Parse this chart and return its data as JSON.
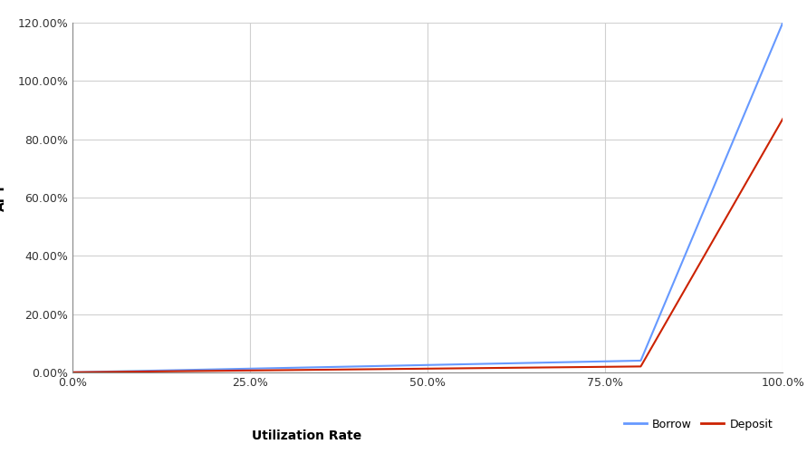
{
  "title": "",
  "xlabel": "Utilization Rate",
  "ylabel": "APY",
  "background_color": "#ffffff",
  "grid_color": "#d0d0d0",
  "borrow_color": "#6699ff",
  "deposit_color": "#cc2200",
  "legend_borrow": "Borrow",
  "legend_deposit": "Deposit",
  "xlim": [
    0.0,
    1.0
  ],
  "ylim": [
    0.0,
    1.2
  ],
  "x_ticks": [
    0.0,
    0.25,
    0.5,
    0.75,
    1.0
  ],
  "x_tick_labels": [
    "0.0%",
    "25.0%",
    "50.0%",
    "75.0%",
    "100.0%"
  ],
  "y_ticks": [
    0.0,
    0.2,
    0.4,
    0.6,
    0.8,
    1.0,
    1.2
  ],
  "y_tick_labels": [
    "0.00%",
    "20.00%",
    "40.00%",
    "60.00%",
    "80.00%",
    "100.00%",
    "120.00%"
  ],
  "kink": 0.8,
  "borrow_at_kink": 0.04,
  "borrow_at_max": 1.2,
  "deposit_at_kink": 0.02,
  "deposit_at_max": 0.87
}
